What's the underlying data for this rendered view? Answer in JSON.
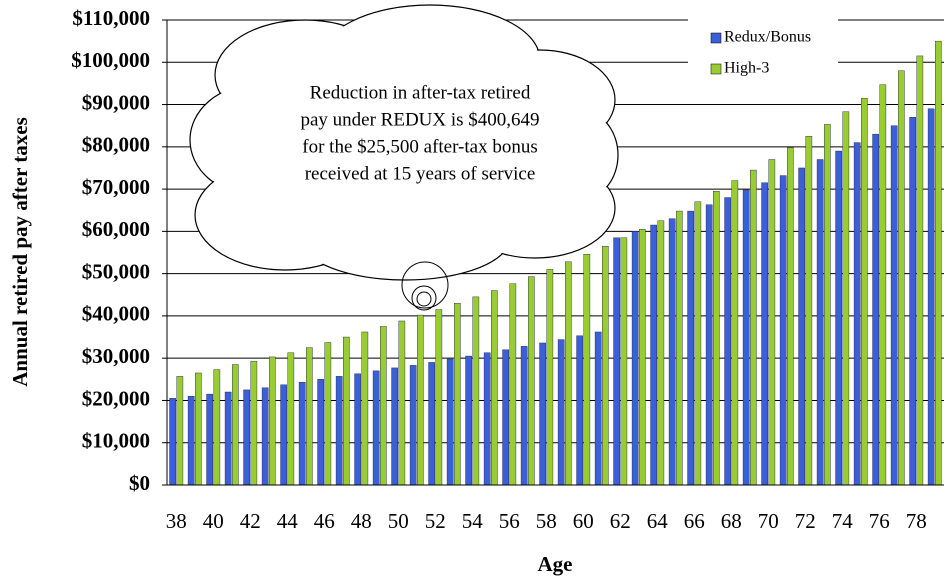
{
  "chart_data": {
    "type": "bar",
    "y_axis_label": "Annual retired pay after taxes",
    "x_axis_label": "Age",
    "annotation": [
      "Reduction in after-tax retired",
      "pay under REDUX is $400,649",
      "for the $25,500 after-tax bonus",
      "received at 15 years of service"
    ],
    "categories": [
      "38",
      null,
      "40",
      null,
      "42",
      null,
      "44",
      null,
      "46",
      null,
      "48",
      null,
      "50",
      null,
      "52",
      null,
      "54",
      null,
      "56",
      null,
      "58",
      null,
      "60",
      null,
      "62",
      null,
      "64",
      null,
      "66",
      null,
      "68",
      null,
      "70",
      null,
      "72",
      null,
      "74",
      null,
      "76",
      null,
      "78",
      null
    ],
    "series": [
      {
        "name": "Redux/Bonus",
        "color": "#3a5fd9",
        "values": [
          20500,
          21000,
          21500,
          22000,
          22500,
          23000,
          23700,
          24300,
          25000,
          25700,
          26300,
          27000,
          27700,
          28300,
          29000,
          29800,
          30500,
          31300,
          32000,
          32800,
          33600,
          34400,
          35300,
          36200,
          58500,
          60000,
          61500,
          63000,
          64800,
          66300,
          68000,
          69800,
          71500,
          73200,
          75000,
          77000,
          79000,
          81000,
          83000,
          85000,
          87000,
          89000
        ]
      },
      {
        "name": "High-3",
        "color": "#99cc33",
        "values": [
          25700,
          26500,
          27300,
          28500,
          29300,
          30300,
          31300,
          32500,
          33700,
          35000,
          36200,
          37500,
          38800,
          40200,
          41500,
          43000,
          44500,
          46000,
          47600,
          49300,
          51000,
          52800,
          54600,
          56500,
          58500,
          60500,
          62500,
          64800,
          67000,
          69500,
          72000,
          74500,
          77000,
          79800,
          82500,
          85300,
          88300,
          91500,
          94700,
          98000,
          101500,
          105000
        ]
      }
    ],
    "ylim": [
      0,
      110000
    ],
    "yticks": [
      {
        "value": 0,
        "label": "$0"
      },
      {
        "value": 10000,
        "label": "$10,000"
      },
      {
        "value": 20000,
        "label": "$20,000"
      },
      {
        "value": 30000,
        "label": "$30,000"
      },
      {
        "value": 40000,
        "label": "$40,000"
      },
      {
        "value": 50000,
        "label": "$50,000"
      },
      {
        "value": 60000,
        "label": "$60,000"
      },
      {
        "value": 70000,
        "label": "$70,000"
      },
      {
        "value": 80000,
        "label": "$80,000"
      },
      {
        "value": 90000,
        "label": "$90,000"
      },
      {
        "value": 100000,
        "label": "$100,000"
      },
      {
        "value": 110000,
        "label": "$110,000"
      }
    ],
    "grid": true
  }
}
